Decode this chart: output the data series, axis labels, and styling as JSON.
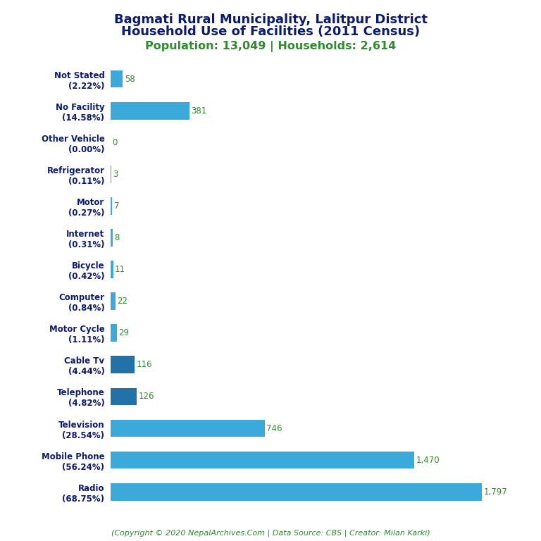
{
  "title_line1": "Bagmati Rural Municipality, Lalitpur District",
  "title_line2": "Household Use of Facilities (2011 Census)",
  "subtitle": "Population: 13,049 | Households: 2,614",
  "footer": "(Copyright © 2020 NepalArchives.Com | Data Source: CBS | Creator: Milan Karki)",
  "categories": [
    "Not Stated\n(2.22%)",
    "No Facility\n(14.58%)",
    "Other Vehicle\n(0.00%)",
    "Refrigerator\n(0.11%)",
    "Motor\n(0.27%)",
    "Internet\n(0.31%)",
    "Bicycle\n(0.42%)",
    "Computer\n(0.84%)",
    "Motor Cycle\n(1.11%)",
    "Cable Tv\n(4.44%)",
    "Telephone\n(4.82%)",
    "Television\n(28.54%)",
    "Mobile Phone\n(56.24%)",
    "Radio\n(68.75%)"
  ],
  "values": [
    58,
    381,
    0,
    3,
    7,
    8,
    11,
    22,
    29,
    116,
    126,
    746,
    1470,
    1797
  ],
  "bar_colors": [
    "#3baada",
    "#3baada",
    "#3baada",
    "#3baada",
    "#3baada",
    "#3baada",
    "#3baada",
    "#3baada",
    "#3baada",
    "#2272a8",
    "#2272a8",
    "#3baada",
    "#3baada",
    "#3baada"
  ],
  "title_color": "#0d1b6e",
  "subtitle_color": "#2e8b2e",
  "value_color": "#2e8b2e",
  "footer_color": "#2e8b2e",
  "label_color": "#0d1b6e",
  "background_color": "#ffffff",
  "xlim": [
    0,
    1900
  ]
}
